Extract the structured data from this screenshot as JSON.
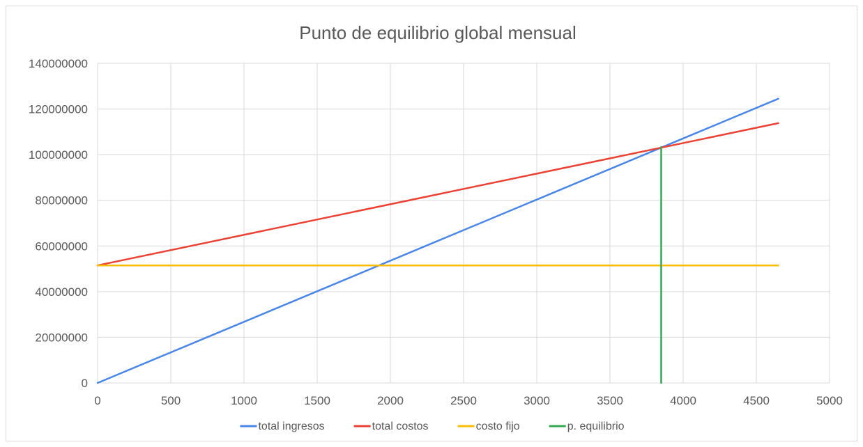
{
  "chart_data": {
    "type": "line",
    "title": "Punto de equilibrio global mensual",
    "xlabel": "",
    "ylabel": "",
    "xlim": [
      0,
      5000
    ],
    "ylim": [
      0,
      140000000
    ],
    "x_ticks": [
      0,
      500,
      1000,
      1500,
      2000,
      2500,
      3000,
      3500,
      4000,
      4500,
      5000
    ],
    "y_ticks": [
      0,
      20000000,
      40000000,
      60000000,
      80000000,
      100000000,
      120000000,
      140000000
    ],
    "x_tick_labels": [
      "0",
      "500",
      "1000",
      "1500",
      "2000",
      "2500",
      "3000",
      "3500",
      "4000",
      "4500",
      "5000"
    ],
    "y_tick_labels": [
      "0",
      "20000000",
      "40000000",
      "60000000",
      "80000000",
      "100000000",
      "120000000",
      "140000000"
    ],
    "grid": true,
    "legend_position": "bottom",
    "series": [
      {
        "name": "total ingresos",
        "color": "#4a86e8",
        "points": [
          [
            0,
            0
          ],
          [
            4650,
            124500000
          ]
        ]
      },
      {
        "name": "total costos",
        "color": "#ea4335",
        "points": [
          [
            0,
            51500000
          ],
          [
            4650,
            113800000
          ]
        ]
      },
      {
        "name": "costo fijo",
        "color": "#fbbc04",
        "points": [
          [
            0,
            51500000
          ],
          [
            4650,
            51500000
          ]
        ]
      },
      {
        "name": "p. equilibrio",
        "color": "#34a853",
        "points": [
          [
            3850,
            0
          ],
          [
            3850,
            103300000
          ]
        ]
      }
    ]
  }
}
